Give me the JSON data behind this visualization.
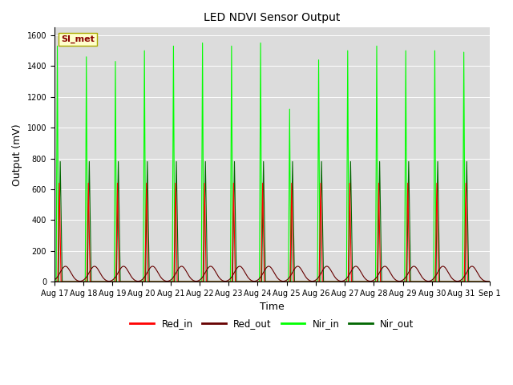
{
  "title": "LED NDVI Sensor Output",
  "xlabel": "Time",
  "ylabel": "Output (mV)",
  "ylim": [
    0,
    1650
  ],
  "yticks": [
    0,
    200,
    400,
    600,
    800,
    1000,
    1200,
    1400,
    1600
  ],
  "date_labels": [
    "Aug 17",
    "Aug 18",
    "Aug 19",
    "Aug 20",
    "Aug 21",
    "Aug 22",
    "Aug 23",
    "Aug 24",
    "Aug 25",
    "Aug 26",
    "Aug 27",
    "Aug 28",
    "Aug 29",
    "Aug 30",
    "Aug 31",
    "Sep 1"
  ],
  "annotation_text": "SI_met",
  "annotation_bg": "#ffffcc",
  "annotation_text_color": "#880000",
  "annotation_border_color": "#aaaa00",
  "plot_bg": "#dcdcdc",
  "fig_bg": "#ffffff",
  "colors": {
    "Red_in": "#ff0000",
    "Red_out": "#660000",
    "Nir_in": "#00ff00",
    "Nir_out": "#006600"
  },
  "num_cycles": 15,
  "red_in_peak": 640,
  "red_out_peak": 100,
  "nir_in_peaks": [
    1530,
    1460,
    1430,
    1500,
    1530,
    1550,
    1530,
    1550,
    1120,
    1440,
    1500,
    1530,
    1500,
    1500,
    1490
  ],
  "nir_out_peak": 780,
  "figsize": [
    6.4,
    4.8
  ],
  "dpi": 100
}
